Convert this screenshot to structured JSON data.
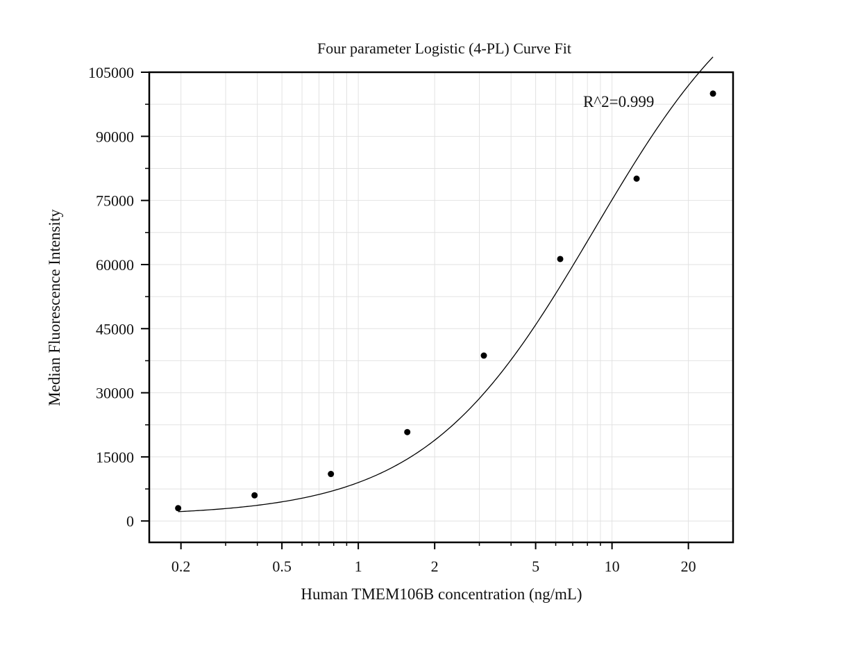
{
  "chart_data": {
    "type": "scatter",
    "title": "Four parameter Logistic (4-PL) Curve Fit",
    "xlabel": "Human TMEM106B concentration (ng/mL)",
    "ylabel": "Median Fluorescence Intensity",
    "x_scale": "log",
    "xlim": [
      0.15,
      30
    ],
    "ylim": [
      -5000,
      105000
    ],
    "x_ticks": [
      0.2,
      0.5,
      1,
      2,
      5,
      10,
      20
    ],
    "x_tick_labels": [
      "0.2",
      "0.5",
      "1",
      "2",
      "5",
      "10",
      "20"
    ],
    "y_ticks": [
      0,
      15000,
      30000,
      45000,
      60000,
      75000,
      90000,
      105000
    ],
    "y_tick_labels": [
      "0",
      "15000",
      "30000",
      "45000",
      "60000",
      "75000",
      "90000",
      "105000"
    ],
    "grid": true,
    "series": [
      {
        "type": "scatter",
        "x": [
          0.195,
          0.39,
          0.78,
          1.56,
          3.125,
          6.25,
          12.5,
          25
        ],
        "y": [
          3000,
          6000,
          11000,
          20800,
          38700,
          61300,
          80100,
          100000
        ]
      }
    ],
    "fit_curve": {
      "model": "4PL",
      "a": 1200,
      "b": 1.3,
      "c": 8.5,
      "d": 135000,
      "x_range": [
        0.195,
        25
      ]
    },
    "annotations": [
      {
        "text": "R^2=0.999"
      }
    ],
    "colors": {
      "points": "#000000",
      "curve": "#000000",
      "grid": "#e2e2e2",
      "frame": "#000000"
    }
  }
}
